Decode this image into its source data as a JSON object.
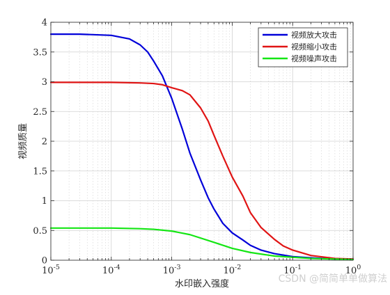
{
  "chart_data": {
    "type": "line",
    "xscale": "log",
    "xlim": [
      1e-05,
      1
    ],
    "ylim": [
      0,
      4
    ],
    "xlabel": "水印嵌入强度",
    "ylabel": "视频质量",
    "x_ticks": [
      {
        "value": 1e-05,
        "base": "10",
        "exp": "-5"
      },
      {
        "value": 0.0001,
        "base": "10",
        "exp": "-4"
      },
      {
        "value": 0.001,
        "base": "10",
        "exp": "-3"
      },
      {
        "value": 0.01,
        "base": "10",
        "exp": "-2"
      },
      {
        "value": 0.1,
        "base": "10",
        "exp": "-1"
      },
      {
        "value": 1,
        "base": "10",
        "exp": "0"
      }
    ],
    "y_ticks": [
      "0",
      "0.5",
      "1",
      "1.5",
      "2",
      "2.5",
      "3",
      "3.5",
      "4"
    ],
    "grid": true,
    "legend_position": "top-right",
    "series": [
      {
        "name": "视频放大攻击",
        "color": "#0000d9",
        "x": [
          1e-05,
          3e-05,
          0.0001,
          0.0002,
          0.0003,
          0.0004,
          0.0005,
          0.0007,
          0.001,
          0.0015,
          0.002,
          0.003,
          0.004,
          0.005,
          0.007,
          0.01,
          0.015,
          0.02,
          0.03,
          0.05,
          0.1,
          0.2,
          0.5,
          1
        ],
        "values": [
          3.8,
          3.8,
          3.78,
          3.72,
          3.62,
          3.5,
          3.35,
          3.1,
          2.72,
          2.2,
          1.8,
          1.35,
          1.05,
          0.86,
          0.62,
          0.46,
          0.34,
          0.25,
          0.17,
          0.11,
          0.06,
          0.04,
          0.02,
          0.02
        ]
      },
      {
        "name": "视频缩小攻击",
        "color": "#e01414",
        "x": [
          1e-05,
          0.0001,
          0.0003,
          0.0005,
          0.0007,
          0.001,
          0.0015,
          0.002,
          0.003,
          0.004,
          0.005,
          0.007,
          0.01,
          0.015,
          0.02,
          0.03,
          0.05,
          0.07,
          0.1,
          0.2,
          0.5,
          1
        ],
        "values": [
          2.99,
          2.99,
          2.98,
          2.97,
          2.95,
          2.9,
          2.85,
          2.78,
          2.56,
          2.34,
          2.1,
          1.75,
          1.4,
          1.08,
          0.8,
          0.55,
          0.35,
          0.24,
          0.17,
          0.08,
          0.03,
          0.02
        ]
      },
      {
        "name": "视频噪声攻击",
        "color": "#14e614",
        "x": [
          1e-05,
          0.0001,
          0.0003,
          0.0005,
          0.001,
          0.002,
          0.005,
          0.01,
          0.02,
          0.05,
          0.1,
          0.2,
          0.5,
          1
        ],
        "values": [
          0.54,
          0.54,
          0.53,
          0.52,
          0.49,
          0.43,
          0.3,
          0.2,
          0.13,
          0.07,
          0.05,
          0.03,
          0.02,
          0.01
        ]
      }
    ]
  },
  "watermark": "CSDN @简简单单做算法"
}
